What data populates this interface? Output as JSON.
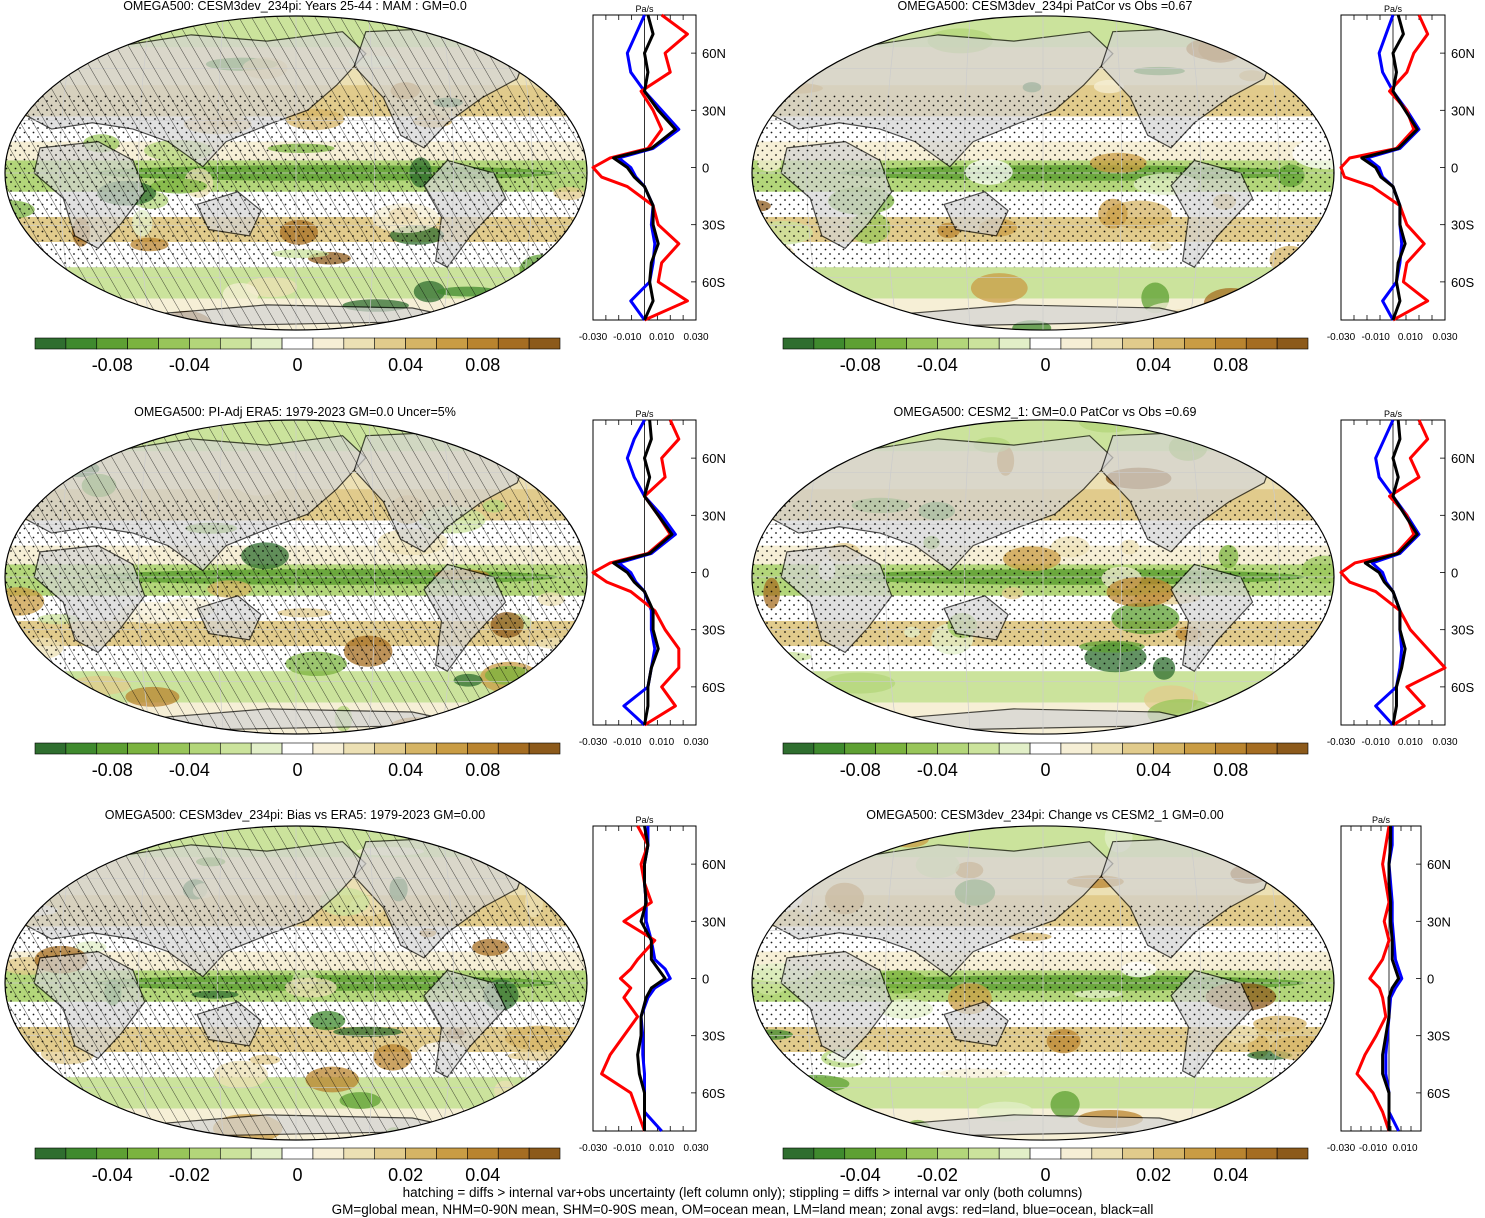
{
  "colors": {
    "scale": [
      "#2f6e2f",
      "#3f8a2e",
      "#5ea033",
      "#7bb33f",
      "#98c55a",
      "#b3d67a",
      "#cbe39c",
      "#e2efc8",
      "#ffffff",
      "#f6efd6",
      "#ece0b4",
      "#e1cb8c",
      "#d5b465",
      "#c99c44",
      "#b9842f",
      "#a56d22",
      "#8c5a1b"
    ],
    "land": "#d3d3d3",
    "zonal_land": "#ff0000",
    "zonal_ocean": "#0000ff",
    "zonal_all": "#000000"
  },
  "panels": [
    {
      "title": "OMEGA500: CESM3dev_234pi: Years 25-44 : MAM : GM=0.0",
      "hatched": true,
      "colorbar_ticks": [
        "-0.08",
        "-0.04",
        "0",
        "0.04",
        "0.08"
      ],
      "zonal_unit": "Pa/s",
      "zonal_xticks": [
        "-0.030",
        "-0.010",
        "0.010",
        "0.030"
      ],
      "zonal_xlim": [
        -0.03,
        0.03
      ]
    },
    {
      "title": "OMEGA500: CESM3dev_234pi PatCor vs Obs =0.67",
      "hatched": false,
      "colorbar_ticks": [
        "-0.08",
        "-0.04",
        "0",
        "0.04",
        "0.08"
      ],
      "zonal_unit": "Pa/s",
      "zonal_xticks": [
        "-0.030",
        "-0.010",
        "0.010",
        "0.030"
      ],
      "zonal_xlim": [
        -0.03,
        0.03
      ]
    },
    {
      "title": "OMEGA500: PI-Adj ERA5: 1979-2023 GM=0.0 Uncer=5%",
      "hatched": true,
      "colorbar_ticks": [
        "-0.08",
        "-0.04",
        "0",
        "0.04",
        "0.08"
      ],
      "zonal_unit": "Pa/s",
      "zonal_xticks": [
        "-0.030",
        "-0.010",
        "0.010",
        "0.030"
      ],
      "zonal_xlim": [
        -0.03,
        0.03
      ]
    },
    {
      "title": "OMEGA500: CESM2_1: GM=0.0 PatCor vs Obs =0.69",
      "hatched": false,
      "colorbar_ticks": [
        "-0.08",
        "-0.04",
        "0",
        "0.04",
        "0.08"
      ],
      "zonal_unit": "Pa/s",
      "zonal_xticks": [
        "-0.030",
        "-0.010",
        "0.010",
        "0.030"
      ],
      "zonal_xlim": [
        -0.03,
        0.03
      ]
    },
    {
      "title": "OMEGA500: CESM3dev_234pi: Bias vs ERA5: 1979-2023 GM=0.00",
      "hatched": true,
      "colorbar_ticks": [
        "-0.04",
        "-0.02",
        "0",
        "0.02",
        "0.04"
      ],
      "zonal_unit": "Pa/s",
      "zonal_xticks": [
        "-0.030",
        "-0.010",
        "0.010",
        "0.030"
      ],
      "zonal_xlim": [
        -0.03,
        0.03
      ]
    },
    {
      "title": "OMEGA500: CESM3dev_234pi: Change vs CESM2_1 GM=0.00",
      "hatched": false,
      "colorbar_ticks": [
        "-0.04",
        "-0.02",
        "0",
        "0.02",
        "0.04"
      ],
      "zonal_unit": "Pa/s",
      "zonal_xticks": [
        "-0.030",
        "-0.010",
        "0.010"
      ],
      "zonal_xlim": [
        -0.03,
        0.02
      ]
    }
  ],
  "chart_data": {
    "type": "heatmap",
    "variable": "OMEGA500",
    "unit": "Pa/s",
    "latitude_ticks": [
      "60N",
      "30N",
      "0",
      "30S",
      "60S"
    ],
    "latitude_values": [
      60,
      30,
      0,
      -30,
      -60
    ],
    "zonal_lat_samples": [
      80,
      70,
      60,
      50,
      40,
      30,
      20,
      10,
      5,
      0,
      -5,
      -10,
      -20,
      -30,
      -40,
      -50,
      -60,
      -70,
      -80
    ],
    "zonal_profiles": [
      {
        "panel": 0,
        "land": [
          0.01,
          0.025,
          0.012,
          0.015,
          -0.002,
          0.005,
          0.01,
          0.002,
          -0.02,
          -0.032,
          -0.025,
          -0.01,
          0.005,
          0.008,
          0.02,
          0.01,
          0.008,
          0.025,
          0.0
        ],
        "ocean": [
          0.0,
          -0.005,
          -0.01,
          -0.008,
          0.0,
          0.01,
          0.02,
          0.005,
          -0.015,
          -0.008,
          -0.005,
          0.0,
          0.005,
          0.004,
          0.006,
          0.005,
          0.003,
          -0.008,
          0.0
        ],
        "all": [
          0.002,
          0.005,
          0.0,
          0.002,
          0.0,
          0.008,
          0.018,
          0.004,
          -0.018,
          -0.01,
          -0.006,
          0.0,
          0.005,
          0.005,
          0.008,
          0.004,
          0.003,
          0.005,
          0.0
        ]
      },
      {
        "panel": 1,
        "land": [
          0.015,
          0.02,
          0.012,
          0.008,
          -0.002,
          0.008,
          0.012,
          0.002,
          -0.025,
          -0.032,
          -0.028,
          -0.012,
          0.004,
          0.008,
          0.018,
          0.008,
          0.006,
          0.02,
          0.0
        ],
        "ocean": [
          0.0,
          -0.004,
          -0.008,
          -0.006,
          0.0,
          0.008,
          0.015,
          0.004,
          -0.015,
          -0.008,
          -0.006,
          0.0,
          0.004,
          0.004,
          0.005,
          0.004,
          0.002,
          -0.006,
          0.0
        ],
        "all": [
          0.003,
          0.006,
          0.0,
          0.002,
          0.0,
          0.007,
          0.014,
          0.003,
          -0.018,
          -0.01,
          -0.007,
          0.0,
          0.004,
          0.004,
          0.007,
          0.003,
          0.002,
          0.004,
          0.0
        ]
      },
      {
        "panel": 2,
        "land": [
          0.015,
          0.02,
          0.01,
          0.012,
          0.0,
          0.008,
          0.015,
          0.002,
          -0.02,
          -0.03,
          -0.022,
          -0.008,
          0.006,
          0.012,
          0.02,
          0.02,
          0.01,
          0.018,
          0.0
        ],
        "ocean": [
          0.0,
          -0.006,
          -0.01,
          -0.006,
          0.0,
          0.01,
          0.018,
          0.004,
          -0.015,
          -0.008,
          -0.005,
          0.0,
          0.004,
          0.004,
          0.006,
          0.004,
          0.002,
          -0.012,
          0.0
        ],
        "all": [
          0.003,
          0.004,
          0.0,
          0.003,
          0.0,
          0.008,
          0.016,
          0.003,
          -0.018,
          -0.01,
          -0.006,
          0.0,
          0.005,
          0.005,
          0.008,
          0.004,
          0.002,
          0.002,
          0.0
        ]
      },
      {
        "panel": 3,
        "land": [
          0.015,
          0.02,
          0.01,
          0.015,
          -0.002,
          0.008,
          0.012,
          0.002,
          -0.022,
          -0.03,
          -0.025,
          -0.01,
          0.004,
          0.01,
          0.02,
          0.03,
          0.008,
          0.018,
          0.0
        ],
        "ocean": [
          0.0,
          -0.005,
          -0.01,
          -0.008,
          0.0,
          0.008,
          0.015,
          0.004,
          -0.012,
          -0.006,
          -0.004,
          0.0,
          0.004,
          0.004,
          0.005,
          0.004,
          0.002,
          -0.01,
          0.0
        ],
        "all": [
          0.003,
          0.004,
          0.0,
          0.003,
          0.0,
          0.007,
          0.014,
          0.003,
          -0.016,
          -0.008,
          -0.005,
          0.0,
          0.004,
          0.004,
          0.007,
          0.005,
          0.002,
          0.002,
          0.0
        ]
      },
      {
        "panel": 4,
        "land": [
          -0.004,
          0.002,
          -0.002,
          0.0,
          0.004,
          -0.012,
          0.006,
          -0.004,
          -0.008,
          -0.014,
          -0.008,
          -0.012,
          -0.004,
          -0.012,
          -0.02,
          -0.025,
          -0.008,
          -0.004,
          0.0
        ],
        "ocean": [
          0.002,
          0.002,
          0.0,
          0.0,
          0.001,
          0.001,
          0.004,
          0.006,
          0.012,
          0.015,
          0.006,
          0.002,
          -0.002,
          -0.001,
          -0.001,
          0.0,
          0.0,
          0.0,
          0.01
        ],
        "all": [
          0.0,
          0.002,
          0.0,
          0.0,
          0.001,
          -0.002,
          0.004,
          0.004,
          0.008,
          0.012,
          0.004,
          0.001,
          -0.002,
          -0.002,
          -0.004,
          -0.003,
          0.0,
          0.0,
          0.0
        ]
      },
      {
        "panel": 5,
        "land": [
          0.0,
          -0.002,
          -0.004,
          -0.002,
          0.0,
          -0.003,
          0.0,
          -0.004,
          -0.008,
          -0.012,
          -0.006,
          -0.004,
          -0.002,
          -0.008,
          -0.015,
          -0.02,
          -0.01,
          -0.004,
          0.0
        ],
        "ocean": [
          0.002,
          0.002,
          0.0,
          0.001,
          0.002,
          0.002,
          0.003,
          0.004,
          0.006,
          0.008,
          0.004,
          0.001,
          0.0,
          -0.001,
          -0.002,
          -0.002,
          0.0,
          0.0,
          0.006
        ],
        "all": [
          0.001,
          0.001,
          0.0,
          0.0,
          0.001,
          0.001,
          0.002,
          0.002,
          0.004,
          0.006,
          0.002,
          0.0,
          0.0,
          -0.002,
          -0.004,
          -0.004,
          0.0,
          0.0,
          0.0
        ]
      }
    ]
  },
  "footer": {
    "line1": "hatching = diffs > internal var+obs uncertainty (left column only); stippling = diffs > internal var only (both columns)",
    "line2": "GM=global mean, NHM=0-90N mean, SHM=0-90S mean, OM=ocean mean, LM=land mean; zonal avgs: red=land, blue=ocean, black=all"
  }
}
